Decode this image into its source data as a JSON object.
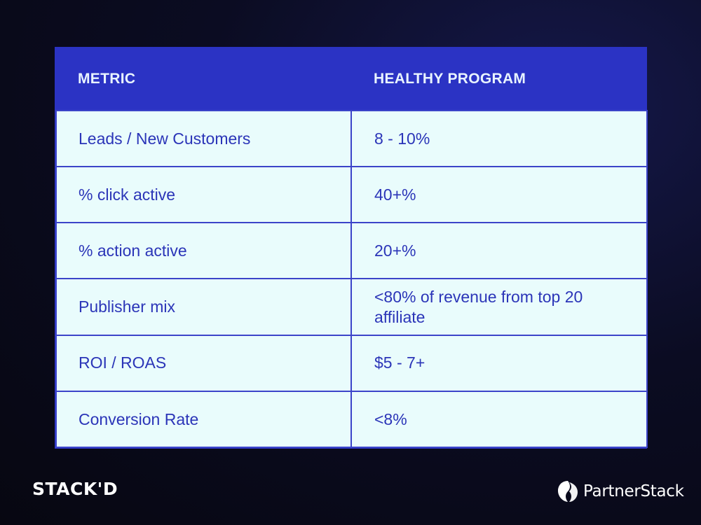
{
  "table": {
    "headers": [
      "METRIC",
      "HEALTHY PROGRAM"
    ],
    "rows": [
      {
        "metric": "Leads / New Customers",
        "value": "8 - 10%"
      },
      {
        "metric": "% click active",
        "value": "40+%"
      },
      {
        "metric": "% action active",
        "value": "20+%"
      },
      {
        "metric": "Publisher mix",
        "value": "<80% of revenue from top 20 affiliate"
      },
      {
        "metric": "ROI / ROAS",
        "value": "$5 - 7+"
      },
      {
        "metric": "Conversion Rate",
        "value": "<8%"
      }
    ]
  },
  "branding": {
    "left_logo": "STACK'D",
    "right_logo": "PartnerStack",
    "right_logo_icon": "partnerstack-icon"
  },
  "colors": {
    "header_bg": "#2b33c4",
    "cell_bg": "#e9fcfc",
    "cell_text": "#2b35b8",
    "page_bg": "#0b0c22"
  }
}
